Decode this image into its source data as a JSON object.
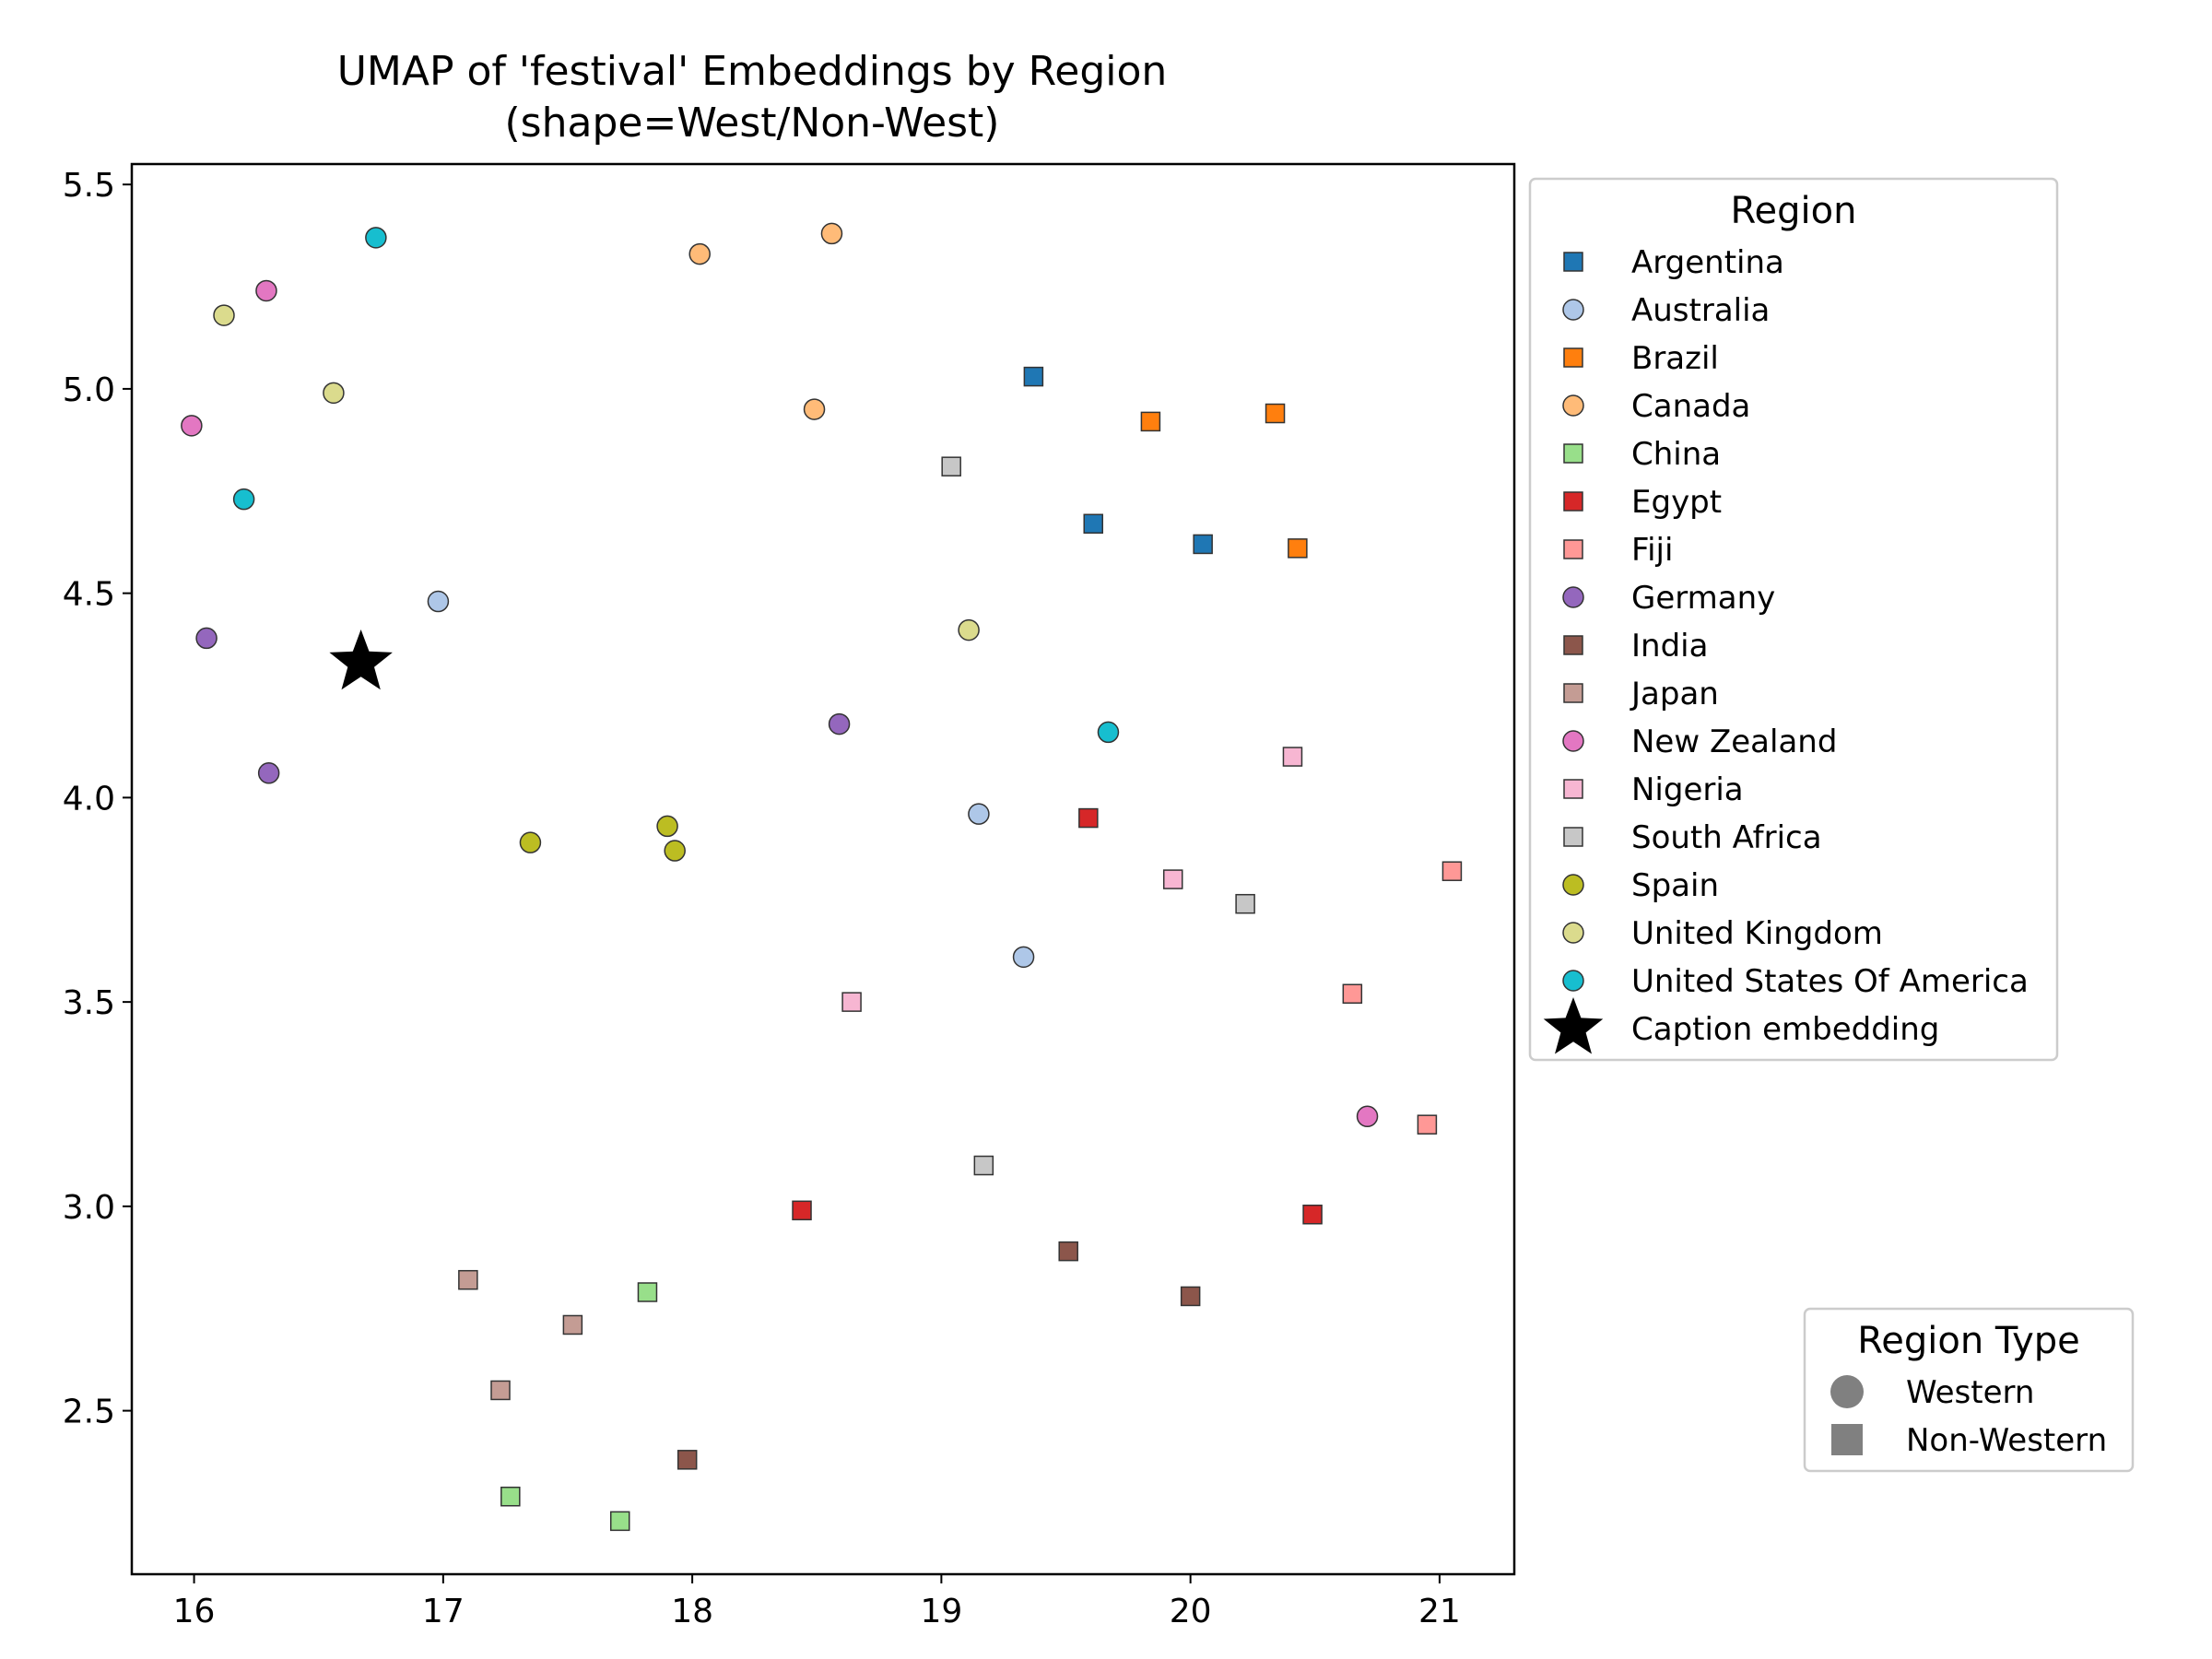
{
  "chart_data": {
    "type": "scatter",
    "title_lines": [
      "UMAP of 'festival' Embeddings by Region",
      "(shape=West/Non-West)"
    ],
    "xlabel": "",
    "ylabel": "",
    "xlim": [
      15.75,
      21.3
    ],
    "ylim": [
      2.1,
      5.55
    ],
    "xticks": [
      16,
      17,
      18,
      19,
      20,
      21
    ],
    "yticks": [
      2.5,
      3.0,
      3.5,
      4.0,
      4.5,
      5.0,
      5.5
    ],
    "xtick_labels": [
      "16",
      "17",
      "18",
      "19",
      "20",
      "21"
    ],
    "ytick_labels": [
      "2.5",
      "3.0",
      "3.5",
      "4.0",
      "4.5",
      "5.0",
      "5.5"
    ],
    "grid": false,
    "legend_title": "Region",
    "legend_placement": "outside-right-top",
    "series": [
      {
        "name": "Argentina",
        "shape": "square",
        "color": "#1f77b4",
        "points": [
          [
            19.37,
            5.03
          ],
          [
            19.61,
            4.67
          ],
          [
            20.05,
            4.62
          ]
        ]
      },
      {
        "name": "Australia",
        "shape": "circle",
        "color": "#aec7e8",
        "points": [
          [
            16.98,
            4.48
          ],
          [
            19.15,
            3.96
          ],
          [
            19.33,
            3.61
          ]
        ]
      },
      {
        "name": "Brazil",
        "shape": "square",
        "color": "#ff7f0e",
        "points": [
          [
            19.84,
            4.92
          ],
          [
            20.34,
            4.94
          ],
          [
            20.43,
            4.61
          ]
        ]
      },
      {
        "name": "Canada",
        "shape": "circle",
        "color": "#ffbb78",
        "points": [
          [
            18.03,
            5.33
          ],
          [
            18.56,
            5.38
          ],
          [
            18.49,
            4.95
          ]
        ]
      },
      {
        "name": "China",
        "shape": "square",
        "color": "#98df8a",
        "points": [
          [
            17.82,
            2.79
          ],
          [
            17.27,
            2.29
          ],
          [
            17.71,
            2.23
          ]
        ]
      },
      {
        "name": "Egypt",
        "shape": "square",
        "color": "#d62728",
        "points": [
          [
            19.59,
            3.95
          ],
          [
            18.44,
            2.99
          ],
          [
            20.49,
            2.98
          ]
        ]
      },
      {
        "name": "Fiji",
        "shape": "square",
        "color": "#ff9896",
        "points": [
          [
            21.05,
            3.82
          ],
          [
            20.65,
            3.52
          ],
          [
            20.95,
            3.2
          ]
        ]
      },
      {
        "name": "Germany",
        "shape": "circle",
        "color": "#9467bd",
        "points": [
          [
            16.05,
            4.39
          ],
          [
            16.3,
            4.06
          ],
          [
            18.59,
            4.18
          ]
        ]
      },
      {
        "name": "India",
        "shape": "square",
        "color": "#8c564b",
        "points": [
          [
            19.51,
            2.89
          ],
          [
            20.0,
            2.78
          ],
          [
            17.98,
            2.38
          ]
        ]
      },
      {
        "name": "Japan",
        "shape": "square",
        "color": "#c49c94",
        "points": [
          [
            17.1,
            2.82
          ],
          [
            17.52,
            2.71
          ],
          [
            17.23,
            2.55
          ]
        ]
      },
      {
        "name": "New Zealand",
        "shape": "circle",
        "color": "#e377c2",
        "points": [
          [
            16.29,
            5.24
          ],
          [
            15.99,
            4.91
          ],
          [
            20.71,
            3.22
          ]
        ]
      },
      {
        "name": "Nigeria",
        "shape": "square",
        "color": "#f7b6d2",
        "points": [
          [
            20.41,
            4.1
          ],
          [
            19.93,
            3.8
          ],
          [
            18.64,
            3.5
          ]
        ]
      },
      {
        "name": "South Africa",
        "shape": "square",
        "color": "#c7c7c7",
        "points": [
          [
            19.04,
            4.81
          ],
          [
            20.22,
            3.74
          ],
          [
            19.17,
            3.1
          ]
        ]
      },
      {
        "name": "Spain",
        "shape": "circle",
        "color": "#bcbd22",
        "points": [
          [
            17.35,
            3.89
          ],
          [
            17.9,
            3.93
          ],
          [
            17.93,
            3.87
          ]
        ]
      },
      {
        "name": "United Kingdom",
        "shape": "circle",
        "color": "#dbdb8d",
        "points": [
          [
            16.12,
            5.18
          ],
          [
            16.56,
            4.99
          ],
          [
            19.11,
            4.41
          ]
        ]
      },
      {
        "name": "United States Of America",
        "shape": "circle",
        "color": "#17becf",
        "points": [
          [
            16.73,
            5.37
          ],
          [
            16.2,
            4.73
          ],
          [
            19.67,
            4.16
          ]
        ]
      }
    ],
    "caption_embedding": {
      "name": "Caption embedding",
      "shape": "star",
      "color": "#000000",
      "point": [
        16.67,
        4.33
      ]
    },
    "secondary_legend": {
      "title": "Region Type",
      "placement": "outside-right-bottom",
      "items": [
        {
          "label": "Western",
          "shape": "circle",
          "color": "#808080"
        },
        {
          "label": "Non-Western",
          "shape": "square",
          "color": "#808080"
        }
      ]
    }
  }
}
